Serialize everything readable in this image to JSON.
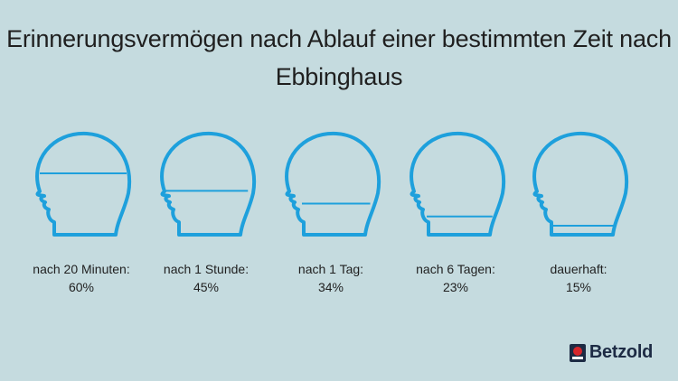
{
  "title_line1": "Erinnerungsvermögen nach Ablauf einer bestimmten Zeit nach",
  "title_line2": "Ebbinghaus",
  "colors": {
    "background": "#c5dbdf",
    "head_outline": "#1ea0dc",
    "text": "#1f1f1f",
    "logo_dark": "#1d2b44",
    "logo_red": "#d7262b"
  },
  "heads": [
    {
      "time": "nach 20 Minuten:",
      "percent": "60%",
      "retention": 60
    },
    {
      "time": "nach 1 Stunde:",
      "percent": "45%",
      "retention": 45
    },
    {
      "time": "nach 1 Tag:",
      "percent": "34%",
      "retention": 34
    },
    {
      "time": "nach 6 Tagen:",
      "percent": "23%",
      "retention": 23
    },
    {
      "time": "dauerhaft:",
      "percent": "15%",
      "retention": 15
    }
  ],
  "logo": {
    "text": "Betzold",
    "icon": "logo-icon"
  }
}
